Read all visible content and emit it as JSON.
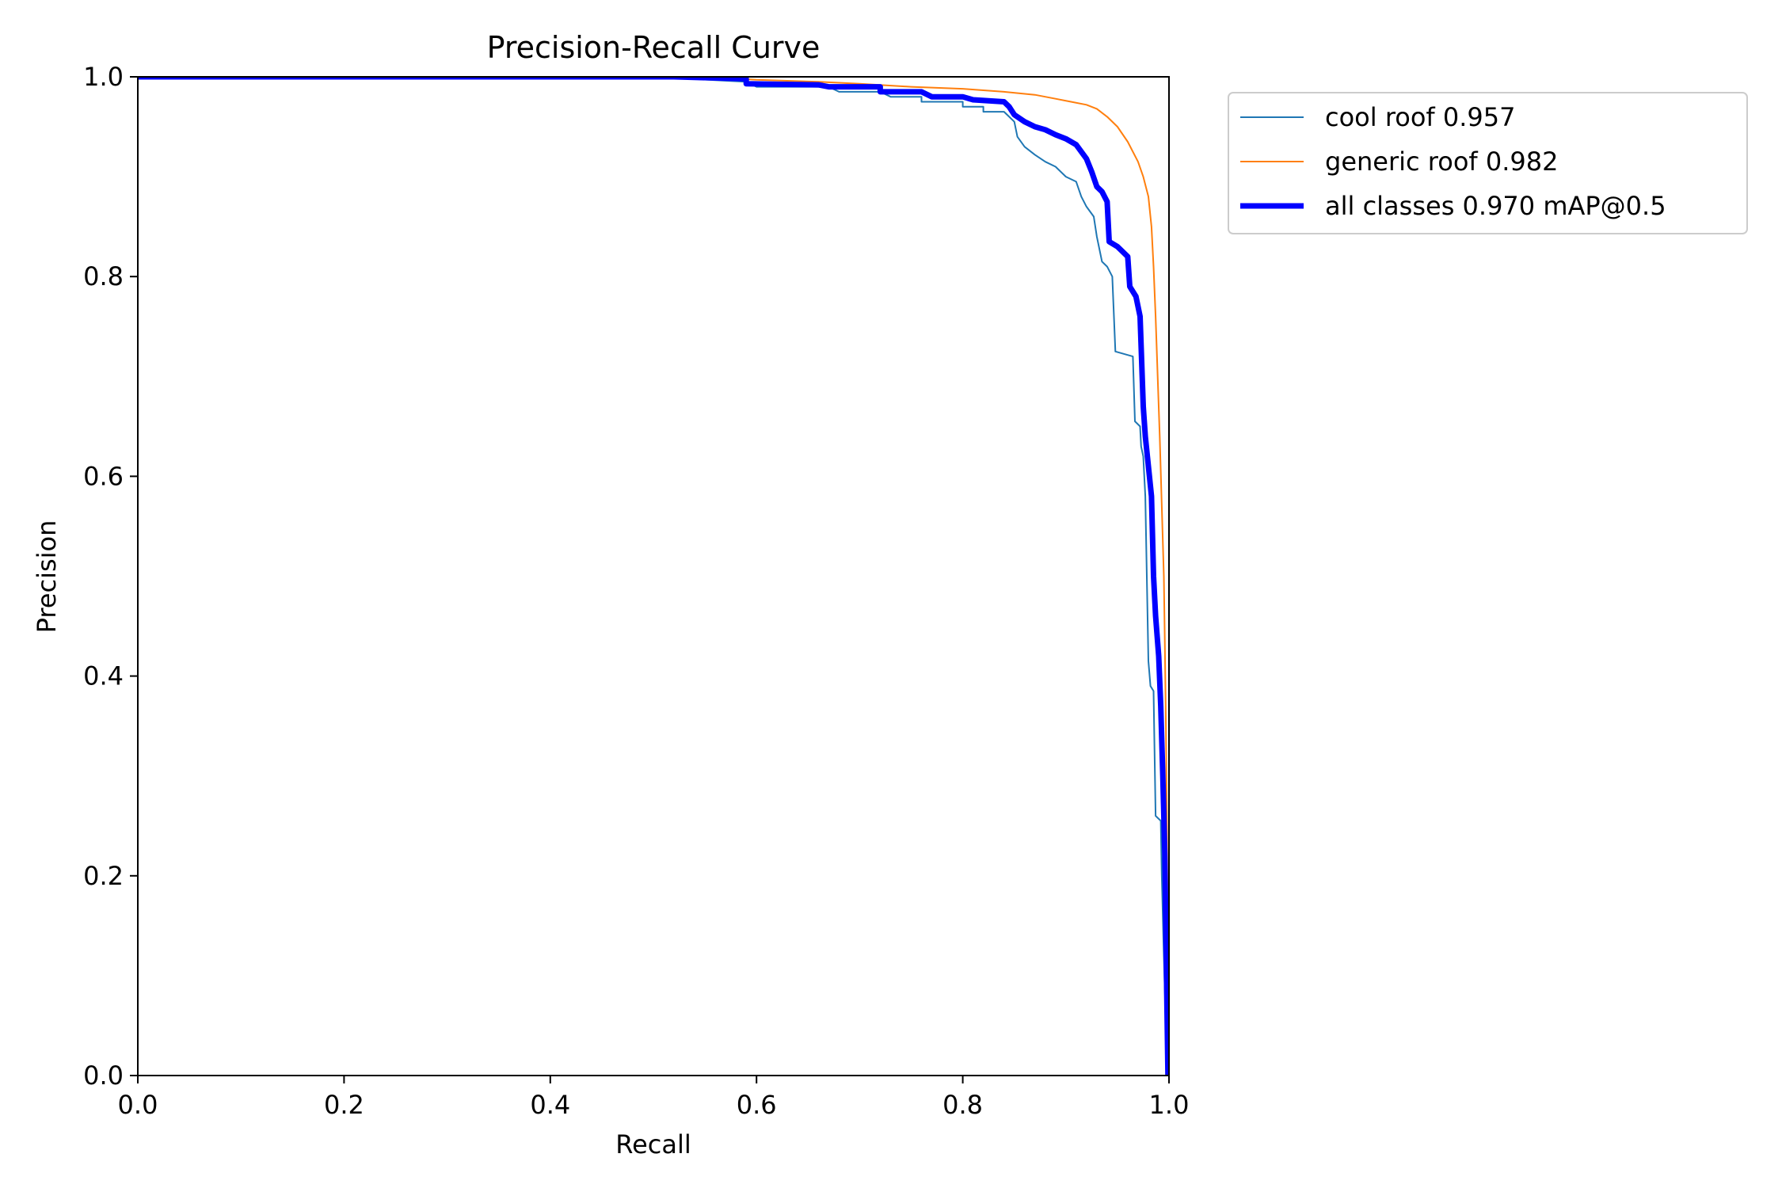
{
  "chart_data": {
    "type": "line",
    "title": "Precision-Recall Curve",
    "xlabel": "Recall",
    "ylabel": "Precision",
    "xlim": [
      0.0,
      1.0
    ],
    "ylim": [
      0.0,
      1.0
    ],
    "grid": false,
    "legend_position": "outside-top-right",
    "x_ticks": [
      "0.0",
      "0.2",
      "0.4",
      "0.6",
      "0.8",
      "1.0"
    ],
    "y_ticks": [
      "0.0",
      "0.2",
      "0.4",
      "0.6",
      "0.8",
      "1.0"
    ],
    "series": [
      {
        "name": "cool roof 0.957",
        "color": "#1f77b4",
        "points": [
          [
            0.0,
            1.0
          ],
          [
            0.5,
            1.0
          ],
          [
            0.59,
            0.995
          ],
          [
            0.6,
            0.99
          ],
          [
            0.67,
            0.99
          ],
          [
            0.68,
            0.985
          ],
          [
            0.72,
            0.985
          ],
          [
            0.73,
            0.98
          ],
          [
            0.76,
            0.98
          ],
          [
            0.76,
            0.975
          ],
          [
            0.8,
            0.975
          ],
          [
            0.8,
            0.97
          ],
          [
            0.82,
            0.97
          ],
          [
            0.82,
            0.965
          ],
          [
            0.84,
            0.965
          ],
          [
            0.85,
            0.955
          ],
          [
            0.853,
            0.94
          ],
          [
            0.86,
            0.93
          ],
          [
            0.87,
            0.922
          ],
          [
            0.88,
            0.915
          ],
          [
            0.89,
            0.91
          ],
          [
            0.9,
            0.9
          ],
          [
            0.91,
            0.895
          ],
          [
            0.915,
            0.88
          ],
          [
            0.92,
            0.87
          ],
          [
            0.927,
            0.86
          ],
          [
            0.93,
            0.84
          ],
          [
            0.935,
            0.815
          ],
          [
            0.94,
            0.81
          ],
          [
            0.945,
            0.8
          ],
          [
            0.948,
            0.725
          ],
          [
            0.965,
            0.72
          ],
          [
            0.967,
            0.655
          ],
          [
            0.972,
            0.65
          ],
          [
            0.973,
            0.63
          ],
          [
            0.975,
            0.62
          ],
          [
            0.977,
            0.58
          ],
          [
            0.98,
            0.415
          ],
          [
            0.982,
            0.39
          ],
          [
            0.985,
            0.385
          ],
          [
            0.987,
            0.26
          ],
          [
            0.992,
            0.255
          ],
          [
            0.993,
            0.2
          ],
          [
            0.995,
            0.12
          ],
          [
            0.997,
            0.05
          ],
          [
            0.999,
            0.0
          ]
        ]
      },
      {
        "name": "generic roof 0.982",
        "color": "#ff7f0e",
        "points": [
          [
            0.0,
            1.0
          ],
          [
            0.55,
            1.0
          ],
          [
            0.6,
            0.997
          ],
          [
            0.66,
            0.995
          ],
          [
            0.7,
            0.993
          ],
          [
            0.75,
            0.99
          ],
          [
            0.8,
            0.988
          ],
          [
            0.84,
            0.985
          ],
          [
            0.87,
            0.982
          ],
          [
            0.89,
            0.978
          ],
          [
            0.905,
            0.975
          ],
          [
            0.92,
            0.972
          ],
          [
            0.93,
            0.968
          ],
          [
            0.94,
            0.96
          ],
          [
            0.95,
            0.95
          ],
          [
            0.96,
            0.935
          ],
          [
            0.97,
            0.915
          ],
          [
            0.975,
            0.9
          ],
          [
            0.98,
            0.88
          ],
          [
            0.983,
            0.85
          ],
          [
            0.985,
            0.81
          ],
          [
            0.987,
            0.76
          ],
          [
            0.989,
            0.7
          ],
          [
            0.991,
            0.64
          ],
          [
            0.993,
            0.57
          ],
          [
            0.995,
            0.5
          ],
          [
            0.996,
            0.43
          ],
          [
            0.997,
            0.35
          ],
          [
            0.998,
            0.25
          ],
          [
            0.999,
            0.12
          ],
          [
            1.0,
            0.0
          ]
        ]
      },
      {
        "name": "all classes 0.970 mAP@0.5",
        "color": "#0000ff",
        "points": [
          [
            0.0,
            1.0
          ],
          [
            0.52,
            1.0
          ],
          [
            0.59,
            0.998
          ],
          [
            0.59,
            0.993
          ],
          [
            0.66,
            0.992
          ],
          [
            0.67,
            0.99
          ],
          [
            0.72,
            0.99
          ],
          [
            0.72,
            0.985
          ],
          [
            0.76,
            0.985
          ],
          [
            0.77,
            0.98
          ],
          [
            0.8,
            0.98
          ],
          [
            0.81,
            0.977
          ],
          [
            0.84,
            0.975
          ],
          [
            0.845,
            0.97
          ],
          [
            0.85,
            0.962
          ],
          [
            0.86,
            0.955
          ],
          [
            0.87,
            0.95
          ],
          [
            0.88,
            0.947
          ],
          [
            0.89,
            0.942
          ],
          [
            0.9,
            0.938
          ],
          [
            0.91,
            0.932
          ],
          [
            0.915,
            0.925
          ],
          [
            0.92,
            0.918
          ],
          [
            0.925,
            0.905
          ],
          [
            0.93,
            0.89
          ],
          [
            0.935,
            0.885
          ],
          [
            0.94,
            0.875
          ],
          [
            0.942,
            0.835
          ],
          [
            0.95,
            0.83
          ],
          [
            0.96,
            0.82
          ],
          [
            0.962,
            0.79
          ],
          [
            0.968,
            0.78
          ],
          [
            0.972,
            0.76
          ],
          [
            0.975,
            0.67
          ],
          [
            0.977,
            0.64
          ],
          [
            0.98,
            0.61
          ],
          [
            0.983,
            0.58
          ],
          [
            0.985,
            0.5
          ],
          [
            0.987,
            0.46
          ],
          [
            0.99,
            0.42
          ],
          [
            0.992,
            0.37
          ],
          [
            0.994,
            0.3
          ],
          [
            0.996,
            0.22
          ],
          [
            0.997,
            0.14
          ],
          [
            0.998,
            0.07
          ],
          [
            0.999,
            0.0
          ]
        ]
      }
    ]
  }
}
